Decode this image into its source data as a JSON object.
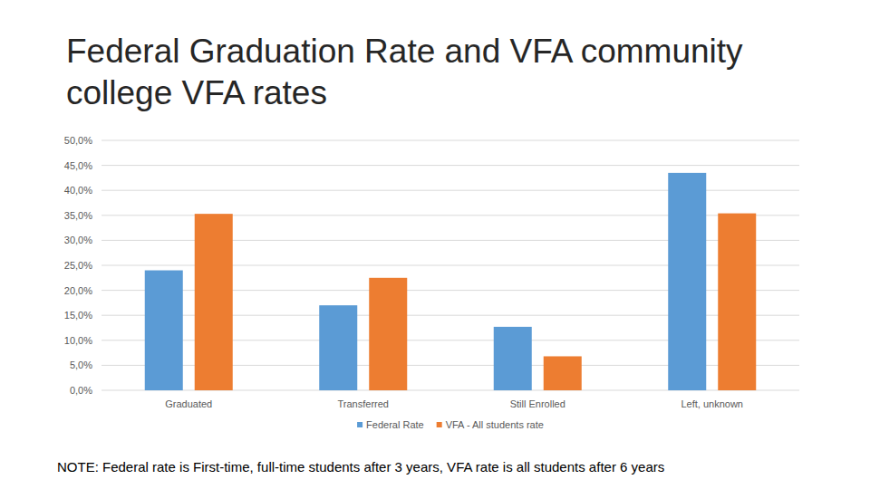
{
  "chart_data": {
    "type": "bar",
    "title": "Federal Graduation Rate and VFA community college VFA rates",
    "categories": [
      "Graduated",
      "Transferred",
      "Still Enrolled",
      "Left, unknown"
    ],
    "series": [
      {
        "name": "Federal Rate",
        "color": "#5b9bd5",
        "values": [
          24.0,
          17.0,
          12.7,
          43.5
        ]
      },
      {
        "name": "VFA - All students rate",
        "color": "#ed7d31",
        "values": [
          35.3,
          22.5,
          6.8,
          35.4
        ]
      }
    ],
    "ylim": [
      0,
      50
    ],
    "yticks": [
      {
        "value": 0,
        "label": "0,0%"
      },
      {
        "value": 5,
        "label": "5,0%"
      },
      {
        "value": 10,
        "label": "10,0%"
      },
      {
        "value": 15,
        "label": "15,0%"
      },
      {
        "value": 20,
        "label": "20,0%"
      },
      {
        "value": 25,
        "label": "25,0%"
      },
      {
        "value": 30,
        "label": "30,0%"
      },
      {
        "value": 35,
        "label": "35,0%"
      },
      {
        "value": 40,
        "label": "40,0%"
      },
      {
        "value": 45,
        "label": "45,0%"
      },
      {
        "value": 50,
        "label": "50,0%"
      }
    ],
    "grid": true,
    "legend": "bottom",
    "annotations": [
      "NOTE: Federal rate is First-time, full-time students after 3 years, VFA rate is all students after 6 years"
    ]
  }
}
